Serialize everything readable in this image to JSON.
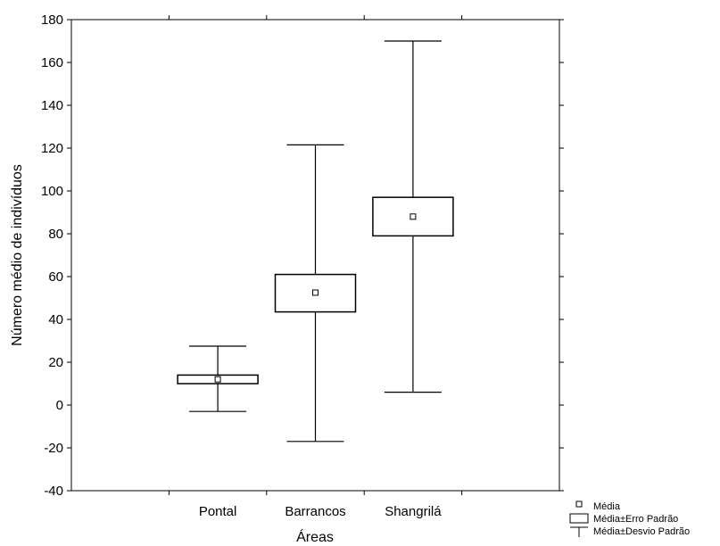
{
  "chart_data": {
    "type": "box",
    "xlabel": "Áreas",
    "ylabel": "Número médio de indivíduos",
    "ylim": [
      -40,
      180
    ],
    "yticks": [
      -40,
      -20,
      0,
      20,
      40,
      60,
      80,
      100,
      120,
      140,
      160,
      180
    ],
    "categories": [
      "Pontal",
      "Barrancos",
      "Shangrilá"
    ],
    "series": [
      {
        "category": "Pontal",
        "mean": 12,
        "se_low": 10,
        "se_high": 14,
        "sd_low": -3,
        "sd_high": 27.5
      },
      {
        "category": "Barrancos",
        "mean": 52.5,
        "se_low": 43.5,
        "se_high": 61,
        "sd_low": -17,
        "sd_high": 121.5
      },
      {
        "category": "Shangrilá",
        "mean": 88,
        "se_low": 79,
        "se_high": 97,
        "sd_low": 6,
        "sd_high": 170
      }
    ],
    "grid": false,
    "legend": {
      "placement": "bottom-right",
      "entries": [
        {
          "marker": "square-point",
          "label": "Média"
        },
        {
          "marker": "box",
          "label": "Média±Erro Padrão"
        },
        {
          "marker": "whisker",
          "label": "Média±Desvio Padrão"
        }
      ]
    }
  }
}
